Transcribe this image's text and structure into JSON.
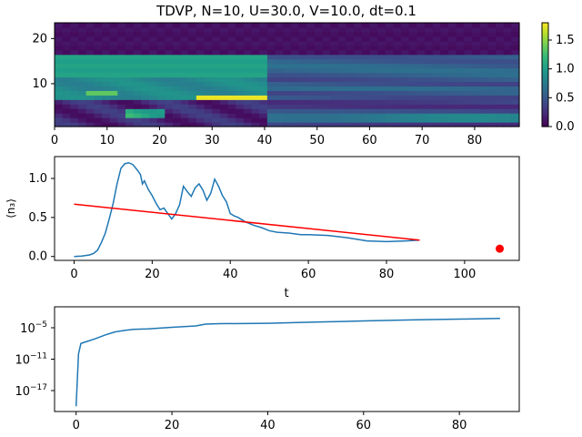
{
  "figure": {
    "title": "TDVP, N=10, U=30.0, V=10.0, dt=0.1"
  },
  "chart_data": [
    {
      "type": "heatmap",
      "title": "TDVP, N=10, U=30.0, V=10.0, dt=0.1",
      "colormap": "viridis",
      "xlim": [
        0,
        88.5
      ],
      "ylim": [
        0.5,
        23.5
      ],
      "xticks": [
        0,
        10,
        20,
        30,
        40,
        50,
        60,
        70,
        80
      ],
      "yticks": [
        10,
        20
      ],
      "colorbar": {
        "vmin": 0.0,
        "vmax": 1.8,
        "ticks": [
          0.0,
          0.5,
          1.0,
          1.5
        ],
        "tick_labels": [
          "0.0",
          "0.5",
          "1.0",
          "1.5"
        ]
      }
    },
    {
      "type": "line",
      "xlabel": "t",
      "ylabel": "⟨n₃⟩",
      "xlim": [
        -5,
        114
      ],
      "ylim": [
        -0.05,
        1.28
      ],
      "xticks": [
        0,
        20,
        40,
        60,
        80,
        100
      ],
      "yticks": [
        0.0,
        0.5,
        1.0
      ],
      "ytick_labels": [
        "0.0",
        "0.5",
        "1.0"
      ],
      "series": [
        {
          "color": "#1f77b4",
          "x": [
            0,
            2,
            4,
            5,
            6,
            7,
            8,
            9,
            10,
            11,
            12,
            13,
            14,
            15,
            16,
            17,
            17.5,
            18,
            19,
            20,
            21,
            22,
            23,
            24,
            25,
            26,
            27,
            28,
            29,
            30,
            31,
            32,
            33,
            34,
            35,
            36,
            37,
            38,
            39,
            40,
            41,
            42,
            43,
            44,
            45,
            46,
            48,
            50,
            52,
            55,
            58,
            60,
            65,
            70,
            75,
            80,
            85,
            88.5
          ],
          "y": [
            0.0,
            0.005,
            0.02,
            0.04,
            0.08,
            0.18,
            0.3,
            0.48,
            0.68,
            0.93,
            1.13,
            1.19,
            1.2,
            1.18,
            1.12,
            1.05,
            0.93,
            0.97,
            0.86,
            0.78,
            0.68,
            0.6,
            0.62,
            0.55,
            0.48,
            0.55,
            0.66,
            0.9,
            0.83,
            0.77,
            0.88,
            0.93,
            0.85,
            0.72,
            0.81,
            0.99,
            0.9,
            0.78,
            0.7,
            0.55,
            0.52,
            0.5,
            0.47,
            0.44,
            0.42,
            0.4,
            0.37,
            0.33,
            0.31,
            0.3,
            0.28,
            0.28,
            0.27,
            0.24,
            0.2,
            0.19,
            0.2,
            0.21
          ]
        },
        {
          "color": "#ff0000",
          "x": [
            0,
            88.5
          ],
          "y": [
            0.67,
            0.21
          ]
        }
      ],
      "points": [
        {
          "x": 109,
          "y": 0.1,
          "color": "#ff0000"
        }
      ]
    },
    {
      "type": "line",
      "yscale": "log",
      "xlim": [
        -4.5,
        92.5
      ],
      "ylim": [
        1e-21,
        0.1
      ],
      "xticks": [
        0,
        20,
        40,
        60,
        80
      ],
      "yticks": [
        "10^-5",
        "10^-11",
        "10^-17"
      ],
      "series": [
        {
          "color": "#1f77b4",
          "x": [
            0,
            0.2,
            0.5,
            1,
            2,
            4,
            6,
            8,
            10,
            12,
            15,
            20,
            25,
            27,
            30,
            40,
            50,
            60,
            70,
            80,
            88.5
          ],
          "y": [
            1e-20,
            1e-16,
            1e-10,
            1e-08,
            2e-08,
            8e-08,
            4e-07,
            1.5e-06,
            3e-06,
            5e-06,
            6e-06,
            1.2e-05,
            2.2e-05,
            5e-05,
            6e-05,
            7e-05,
            0.00012,
            0.0002,
            0.00032,
            0.00045,
            0.0006
          ]
        }
      ]
    }
  ]
}
